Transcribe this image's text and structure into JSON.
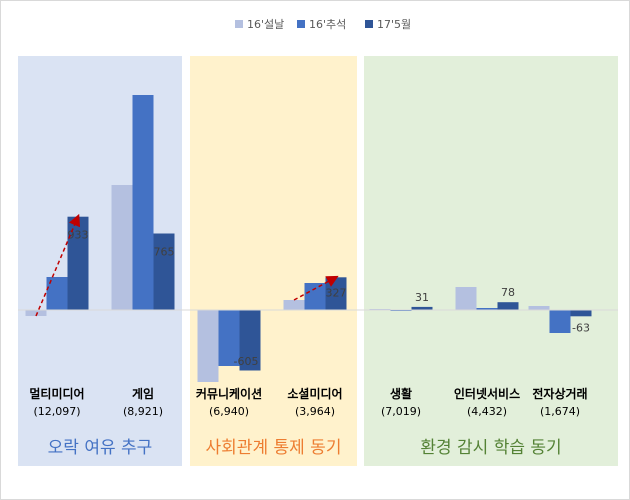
{
  "chart_data": {
    "type": "bar",
    "categories": [
      "멀티미디어",
      "게임",
      "커뮤니케이션",
      "소셜미디어",
      "생활",
      "인터넷서비스",
      "전자상거래"
    ],
    "category_counts": [
      "(12,097)",
      "(8,921)",
      "(6,940)",
      "(3,964)",
      "(7,019)",
      "(4,432)",
      "(1,674)"
    ],
    "series": [
      {
        "name": "16'설날",
        "values": [
          -60,
          1250,
          -720,
          100,
          10,
          230,
          40
        ]
      },
      {
        "name": "16'추석",
        "values": [
          330,
          2150,
          -560,
          270,
          -10,
          20,
          -230
        ]
      },
      {
        "name": "17'5월",
        "values": [
          933,
          765,
          -605,
          327,
          31,
          78,
          -63
        ]
      }
    ],
    "data_labels": [
      {
        "category": "멀티미디어",
        "series": "17'5월",
        "text": "933"
      },
      {
        "category": "게임",
        "series": "17'5월",
        "text": "765"
      },
      {
        "category": "커뮤니케이션",
        "series": "17'5월",
        "text": "-605"
      },
      {
        "category": "소셜미디어",
        "series": "17'5월",
        "text": "327"
      },
      {
        "category": "생활",
        "series": "17'5월",
        "text": "31"
      },
      {
        "category": "인터넷서비스",
        "series": "17'5월",
        "text": "78"
      },
      {
        "category": "전자상거래",
        "series": "17'5월",
        "text": "-63"
      }
    ],
    "groups": [
      {
        "label": "오락 여유 추구",
        "categories": [
          "멀티미디어",
          "게임"
        ],
        "color": "#dae3f3",
        "text_color": "#4472c4"
      },
      {
        "label": "사회관계 통제 동기",
        "categories": [
          "커뮤니케이션",
          "소셜미디어"
        ],
        "color": "#fff2cc",
        "text_color": "#ed7d31"
      },
      {
        "label": "환경 감시 학습 동기",
        "categories": [
          "생활",
          "인터넷서비스",
          "전자상거래"
        ],
        "color": "#e2efda",
        "text_color": "#548235"
      }
    ],
    "series_colors": [
      "#b4c0e0",
      "#4472c4",
      "#2f5597"
    ],
    "trend_arrows": [
      "멀티미디어",
      "소셜미디어"
    ],
    "arrow_color": "#c00000",
    "legend_position": "top",
    "grid": false
  }
}
